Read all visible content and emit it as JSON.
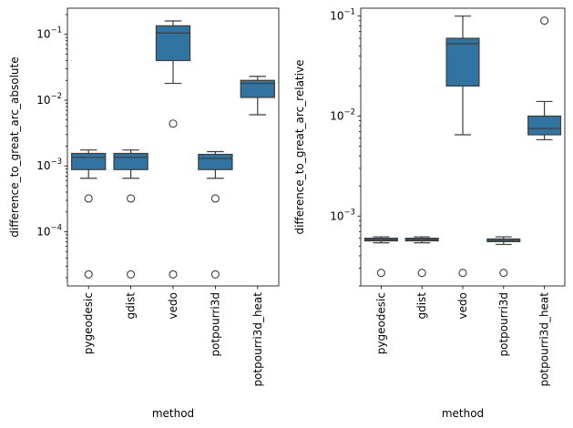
{
  "chart_data": [
    {
      "type": "box",
      "yscale": "log",
      "title": "",
      "xlabel": "method",
      "ylabel": "difference_to_great_arc_absolute",
      "ylim": [
        1.5e-05,
        0.25
      ],
      "yticks": [
        {
          "value": 0.0001,
          "base": "10",
          "exp": "−4"
        },
        {
          "value": 0.001,
          "base": "10",
          "exp": "−3"
        },
        {
          "value": 0.01,
          "base": "10",
          "exp": "−2"
        },
        {
          "value": 0.1,
          "base": "10",
          "exp": "−1"
        }
      ],
      "categories": [
        "pygeodesic",
        "gdist",
        "vedo",
        "potpourri3d",
        "potpourri3d_heat"
      ],
      "boxes": [
        {
          "q1": 0.00088,
          "median": 0.00135,
          "q3": 0.00155,
          "whislo": 0.00065,
          "whishi": 0.00175,
          "fliers": [
            0.00032,
            2.25e-05
          ]
        },
        {
          "q1": 0.00088,
          "median": 0.00135,
          "q3": 0.00155,
          "whislo": 0.00065,
          "whishi": 0.00175,
          "fliers": [
            0.00032,
            2.25e-05
          ]
        },
        {
          "q1": 0.04,
          "median": 0.105,
          "q3": 0.135,
          "whislo": 0.018,
          "whishi": 0.16,
          "fliers": [
            0.0044,
            2.25e-05
          ]
        },
        {
          "q1": 0.00088,
          "median": 0.0013,
          "q3": 0.0015,
          "whislo": 0.00065,
          "whishi": 0.00165,
          "fliers": [
            0.00032,
            2.25e-05
          ]
        },
        {
          "q1": 0.011,
          "median": 0.018,
          "q3": 0.02,
          "whislo": 0.006,
          "whishi": 0.023,
          "fliers": []
        }
      ]
    },
    {
      "type": "box",
      "yscale": "log",
      "title": "",
      "xlabel": "method",
      "ylabel": "difference_to_great_arc_relative",
      "ylim": [
        0.0002,
        0.12
      ],
      "yticks": [
        {
          "value": 0.001,
          "base": "10",
          "exp": "−3"
        },
        {
          "value": 0.01,
          "base": "10",
          "exp": "−2"
        },
        {
          "value": 0.1,
          "base": "10",
          "exp": "−1"
        }
      ],
      "categories": [
        "pygeodesic",
        "gdist",
        "vedo",
        "potpourri3d",
        "potpourri3d_heat"
      ],
      "boxes": [
        {
          "q1": 0.000565,
          "median": 0.00058,
          "q3": 0.0006,
          "whislo": 0.00054,
          "whishi": 0.00062,
          "fliers": [
            0.00027
          ]
        },
        {
          "q1": 0.000565,
          "median": 0.00058,
          "q3": 0.0006,
          "whislo": 0.00054,
          "whishi": 0.00062,
          "fliers": [
            0.00027
          ]
        },
        {
          "q1": 0.02,
          "median": 0.053,
          "q3": 0.06,
          "whislo": 0.0065,
          "whishi": 0.1,
          "fliers": [
            0.00027
          ]
        },
        {
          "q1": 0.000555,
          "median": 0.00057,
          "q3": 0.00059,
          "whislo": 0.00052,
          "whishi": 0.00062,
          "fliers": [
            0.00027
          ]
        },
        {
          "q1": 0.0065,
          "median": 0.0075,
          "q3": 0.01,
          "whislo": 0.0058,
          "whishi": 0.014,
          "fliers": [
            0.09
          ]
        }
      ]
    }
  ],
  "colors": {
    "box_fill": "#3274a1",
    "line": "#3d3d3d",
    "axis": "#000000"
  }
}
